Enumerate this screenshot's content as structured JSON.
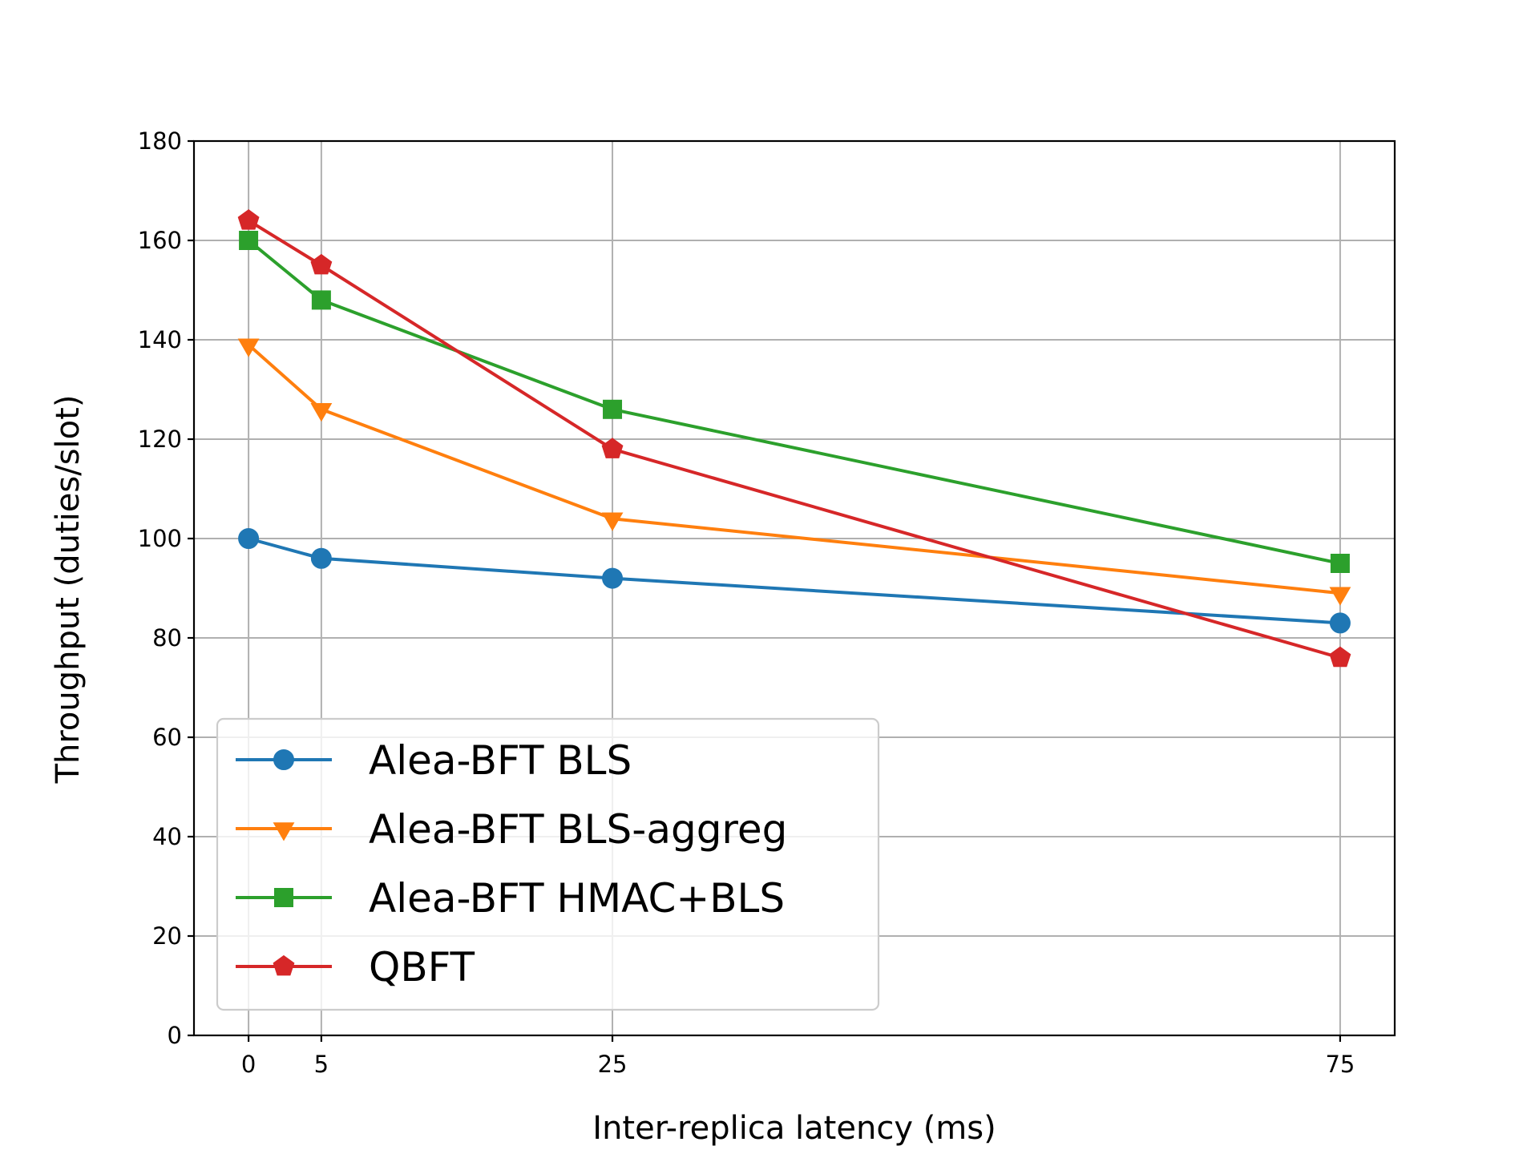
{
  "chart_data": {
    "type": "line",
    "title": "",
    "xlabel": "Inter-replica latency (ms)",
    "ylabel": "Throughput (duties/slot)",
    "x": [
      0,
      5,
      25,
      75
    ],
    "xticks": [
      "0",
      "5",
      "25",
      "75"
    ],
    "yticks": [
      "0",
      "20",
      "40",
      "60",
      "80",
      "100",
      "120",
      "140",
      "160",
      "180"
    ],
    "xlim": [
      -3.75,
      78.75
    ],
    "ylim": [
      0,
      180
    ],
    "grid": true,
    "legend_position": "lower-left",
    "series": [
      {
        "name": "Alea-BFT BLS",
        "color": "#1f77b4",
        "marker": "circle",
        "values": [
          100,
          96,
          92,
          83
        ]
      },
      {
        "name": "Alea-BFT BLS-aggreg",
        "color": "#ff7f0e",
        "marker": "triangle-down",
        "values": [
          139,
          126,
          104,
          89
        ]
      },
      {
        "name": "Alea-BFT HMAC+BLS",
        "color": "#2ca02c",
        "marker": "square",
        "values": [
          160,
          148,
          126,
          95
        ]
      },
      {
        "name": "QBFT",
        "color": "#d62728",
        "marker": "pentagon",
        "values": [
          164,
          155,
          118,
          76
        ]
      }
    ]
  }
}
